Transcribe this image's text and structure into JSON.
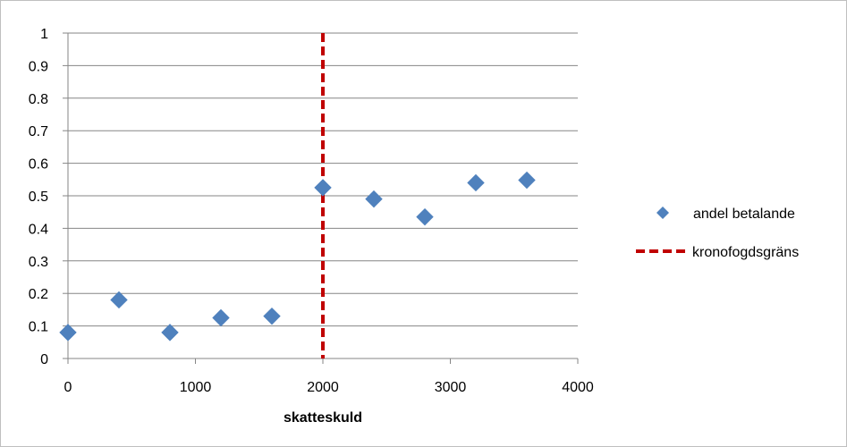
{
  "chart_data": {
    "type": "scatter",
    "title": "",
    "xlabel": "skatteskuld",
    "ylabel": "",
    "xlim": [
      0,
      4000
    ],
    "ylim": [
      0,
      1
    ],
    "x_ticks": [
      0,
      1000,
      2000,
      3000,
      4000
    ],
    "x_tick_labels": [
      "0",
      "1000",
      "2000",
      "3000",
      "4000"
    ],
    "y_ticks": [
      0,
      0.1,
      0.2,
      0.3,
      0.4,
      0.5,
      0.6,
      0.7,
      0.8,
      0.9,
      1
    ],
    "y_tick_labels": [
      "0",
      "0.1",
      "0.2",
      "0.3",
      "0.4",
      "0.5",
      "0.6",
      "0.7",
      "0.8",
      "0.9",
      "1"
    ],
    "grid": "horizontal",
    "legend_position": "right",
    "series": [
      {
        "name": "andel betalande",
        "marker": "diamond",
        "color": "#4f81bd",
        "x": [
          0,
          400,
          800,
          1200,
          1600,
          2000,
          2400,
          2800,
          3200,
          3600
        ],
        "y": [
          0.08,
          0.18,
          0.08,
          0.125,
          0.13,
          0.525,
          0.49,
          0.435,
          0.54,
          0.548
        ]
      },
      {
        "name": "kronofogdsgräns",
        "type": "vertical-dashed-line",
        "color": "#c00000",
        "x": 2000,
        "y": [
          0,
          1
        ]
      }
    ]
  }
}
